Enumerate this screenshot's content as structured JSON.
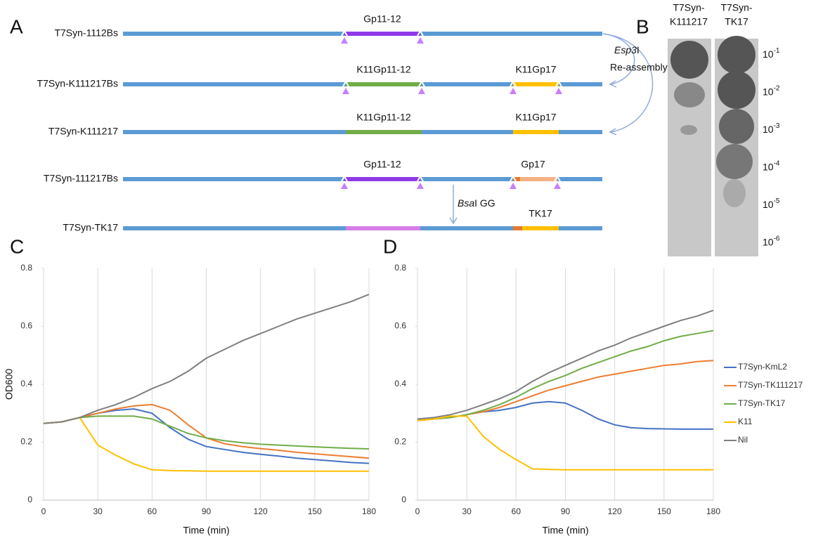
{
  "panel_a": {
    "letter": "A",
    "rows": [
      {
        "name": "T7Syn-1112Bs",
        "labels": [
          "Gp11-12"
        ]
      },
      {
        "name": "T7Syn-K111217Bs",
        "labels": [
          "K11Gp11-12",
          "K11Gp17"
        ]
      },
      {
        "name": "T7Syn-K111217",
        "labels": [
          "K11Gp11-12",
          "K11Gp17"
        ]
      },
      {
        "name": "T7Syn-111217Bs",
        "labels": [
          "Gp11-12",
          "Gp17"
        ]
      },
      {
        "name": "T7Syn-TK17",
        "labels": [
          "TK17"
        ]
      }
    ],
    "step1": {
      "enzyme": "Esp3",
      "suffix": "I",
      "text": "Re-assembly"
    },
    "step2": {
      "enzyme": "Bsa",
      "suffix": "I GG"
    }
  },
  "panel_b": {
    "letter": "B",
    "columns": [
      [
        "T7Syn-",
        "K111217"
      ],
      [
        "T7Syn-",
        "TK17"
      ]
    ],
    "dilutions": [
      {
        "base": "10",
        "exponent": "-1"
      },
      {
        "base": "10",
        "exponent": "-2"
      },
      {
        "base": "10",
        "exponent": "-3"
      },
      {
        "base": "10",
        "exponent": "-4"
      },
      {
        "base": "10",
        "exponent": "-5"
      },
      {
        "base": "10",
        "exponent": "-6"
      }
    ]
  },
  "chart_data": [
    {
      "type": "line",
      "letter": "C",
      "ylabel": "OD600",
      "xlabel": "Time (min)",
      "x": [
        0,
        10,
        20,
        30,
        40,
        50,
        60,
        70,
        80,
        90,
        100,
        110,
        120,
        130,
        140,
        150,
        160,
        170,
        180
      ],
      "xlim": [
        0,
        180
      ],
      "xticks": [
        0,
        30,
        60,
        90,
        120,
        150,
        180
      ],
      "ylim": [
        0,
        0.8
      ],
      "yticks": [
        0,
        0.2,
        0.4,
        0.6,
        0.8
      ],
      "grid": true,
      "series": [
        {
          "color": "#4472c4",
          "values": [
            0.265,
            0.27,
            0.285,
            0.3,
            0.31,
            0.315,
            0.3,
            0.25,
            0.21,
            0.185,
            0.175,
            0.165,
            0.158,
            0.152,
            0.145,
            0.14,
            0.135,
            0.13,
            0.127
          ]
        },
        {
          "color": "#ed7d31",
          "values": [
            0.265,
            0.27,
            0.285,
            0.3,
            0.315,
            0.325,
            0.33,
            0.31,
            0.26,
            0.215,
            0.195,
            0.185,
            0.178,
            0.172,
            0.165,
            0.16,
            0.155,
            0.15,
            0.145
          ]
        },
        {
          "color": "#70ad47",
          "values": [
            0.265,
            0.27,
            0.285,
            0.29,
            0.29,
            0.29,
            0.28,
            0.255,
            0.23,
            0.215,
            0.205,
            0.198,
            0.193,
            0.19,
            0.187,
            0.184,
            0.181,
            0.179,
            0.177
          ]
        },
        {
          "color": "#ffc000",
          "values": [
            0.265,
            0.27,
            0.285,
            0.19,
            0.155,
            0.125,
            0.105,
            0.102,
            0.101,
            0.1,
            0.1,
            0.1,
            0.1,
            0.1,
            0.1,
            0.1,
            0.1,
            0.1,
            0.1
          ]
        },
        {
          "color": "#7f7f7f",
          "values": [
            0.265,
            0.27,
            0.285,
            0.31,
            0.33,
            0.355,
            0.385,
            0.41,
            0.445,
            0.49,
            0.52,
            0.55,
            0.575,
            0.6,
            0.625,
            0.645,
            0.665,
            0.685,
            0.71
          ]
        }
      ]
    },
    {
      "type": "line",
      "letter": "D",
      "xlabel": "Time (min)",
      "x": [
        0,
        10,
        20,
        30,
        40,
        50,
        60,
        70,
        80,
        90,
        100,
        110,
        120,
        130,
        140,
        150,
        160,
        170,
        180
      ],
      "xlim": [
        0,
        180
      ],
      "xticks": [
        0,
        30,
        60,
        90,
        120,
        150,
        180
      ],
      "ylim": [
        0,
        0.8
      ],
      "yticks": [
        0,
        0.2,
        0.4,
        0.6,
        0.8
      ],
      "grid": true,
      "legend": "right",
      "series": [
        {
          "name": "T7Syn-KmL2",
          "color": "#4472c4",
          "values": [
            0.275,
            0.28,
            0.285,
            0.295,
            0.305,
            0.31,
            0.32,
            0.335,
            0.34,
            0.335,
            0.31,
            0.28,
            0.26,
            0.25,
            0.247,
            0.246,
            0.245,
            0.245,
            0.245
          ]
        },
        {
          "name": "T7Syn-TK111217",
          "color": "#ed7d31",
          "values": [
            0.275,
            0.28,
            0.285,
            0.295,
            0.305,
            0.32,
            0.34,
            0.36,
            0.38,
            0.395,
            0.41,
            0.425,
            0.435,
            0.445,
            0.455,
            0.465,
            0.47,
            0.478,
            0.482
          ]
        },
        {
          "name": "T7Syn-TK17",
          "color": "#70ad47",
          "values": [
            0.275,
            0.28,
            0.285,
            0.295,
            0.31,
            0.33,
            0.355,
            0.385,
            0.41,
            0.43,
            0.455,
            0.475,
            0.495,
            0.515,
            0.53,
            0.55,
            0.565,
            0.575,
            0.585
          ]
        },
        {
          "name": "K11",
          "color": "#ffc000",
          "values": [
            0.275,
            0.28,
            0.29,
            0.29,
            0.22,
            0.175,
            0.14,
            0.108,
            0.106,
            0.105,
            0.105,
            0.105,
            0.105,
            0.105,
            0.105,
            0.105,
            0.105,
            0.105,
            0.105
          ]
        },
        {
          "name": "Nil",
          "color": "#7f7f7f",
          "values": [
            0.28,
            0.285,
            0.295,
            0.31,
            0.33,
            0.35,
            0.375,
            0.41,
            0.44,
            0.465,
            0.49,
            0.515,
            0.535,
            0.56,
            0.58,
            0.6,
            0.62,
            0.635,
            0.655
          ]
        }
      ]
    }
  ]
}
